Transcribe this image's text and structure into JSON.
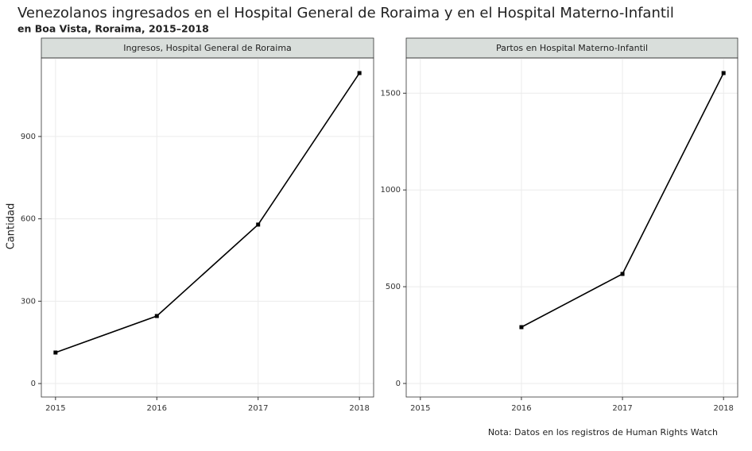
{
  "title": "Venezolanos ingresados en el Hospital General de Roraima y en el Hospital Materno-Infantil",
  "subtitle": "en Boa Vista, Roraima, 2015–2018",
  "ylabel": "Cantidad",
  "caption": "Nota: Datos en los registros de Human Rights Watch",
  "chart_data": [
    {
      "type": "line",
      "strip": "Ingresos, Hospital General de Roraima",
      "x": [
        2015,
        2016,
        2017,
        2018
      ],
      "values": [
        113,
        246,
        579,
        1131
      ],
      "color": "#000000",
      "xlim": [
        2014.86,
        2018.14
      ],
      "xticks": [
        2015,
        2016,
        2017,
        2018
      ],
      "ylim": [
        -49,
        1186
      ],
      "yticks": [
        0,
        300,
        600,
        900
      ],
      "grid": true
    },
    {
      "type": "line",
      "strip": "Partos en Hospital Materno-Infantil",
      "x": [
        2016,
        2017,
        2018
      ],
      "values": [
        291,
        566,
        1604
      ],
      "color": "#000000",
      "xlim": [
        2014.86,
        2018.14
      ],
      "xticks": [
        2015,
        2016,
        2017,
        2018
      ],
      "ylim": [
        -70,
        1682
      ],
      "yticks": [
        0,
        500,
        1000,
        1500
      ],
      "grid": true
    }
  ]
}
